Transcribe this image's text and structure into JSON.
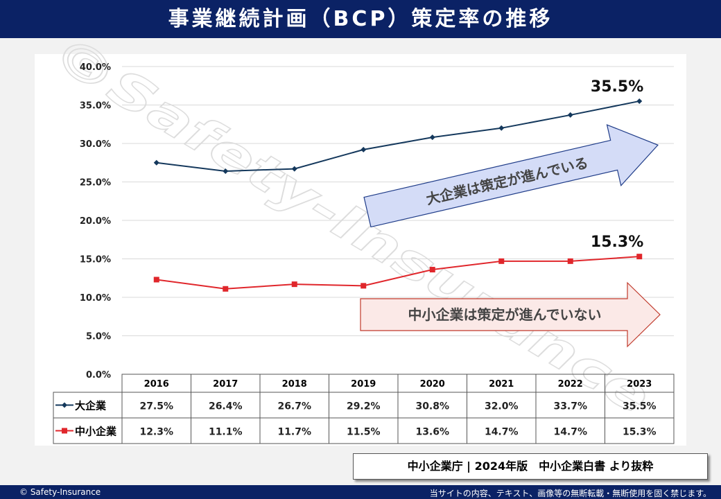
{
  "header": {
    "title": "事業継続計画（BCP）策定率の推移"
  },
  "chart_data": {
    "type": "line",
    "categories": [
      "2016",
      "2017",
      "2018",
      "2019",
      "2020",
      "2021",
      "2022",
      "2023"
    ],
    "ylim": [
      0,
      40
    ],
    "yticks": [
      "0.0%",
      "5.0%",
      "10.0%",
      "15.0%",
      "20.0%",
      "25.0%",
      "30.0%",
      "35.0%",
      "40.0%"
    ],
    "grid": true,
    "series": [
      {
        "name": "大企業",
        "values": [
          27.5,
          26.4,
          26.7,
          29.2,
          30.8,
          32.0,
          33.7,
          35.5
        ],
        "labels": [
          "27.5%",
          "26.4%",
          "26.7%",
          "29.2%",
          "30.8%",
          "32.0%",
          "33.7%",
          "35.5%"
        ],
        "color": "#14385c",
        "marker": "diamond"
      },
      {
        "name": "中小企業",
        "values": [
          12.3,
          11.1,
          11.7,
          11.5,
          13.6,
          14.7,
          14.7,
          15.3
        ],
        "labels": [
          "12.3%",
          "11.1%",
          "11.7%",
          "11.5%",
          "13.6%",
          "14.7%",
          "14.7%",
          "15.3%"
        ],
        "color": "#e0262b",
        "marker": "square"
      }
    ],
    "end_labels": [
      "35.5%",
      "15.3%"
    ],
    "annotations": [
      "大企業は策定が進んでいる",
      "中小企業は策定が進んでいない"
    ],
    "data_table": true
  },
  "watermark": "©Safety-Insurance",
  "source": "中小企業庁 | 2024年版　中小企業白書 より抜粋",
  "footer": {
    "left": "© Safety-Insurance",
    "right": "当サイトの内容、テキスト、画像等の無断転載・無断使用を固く禁じます。"
  }
}
